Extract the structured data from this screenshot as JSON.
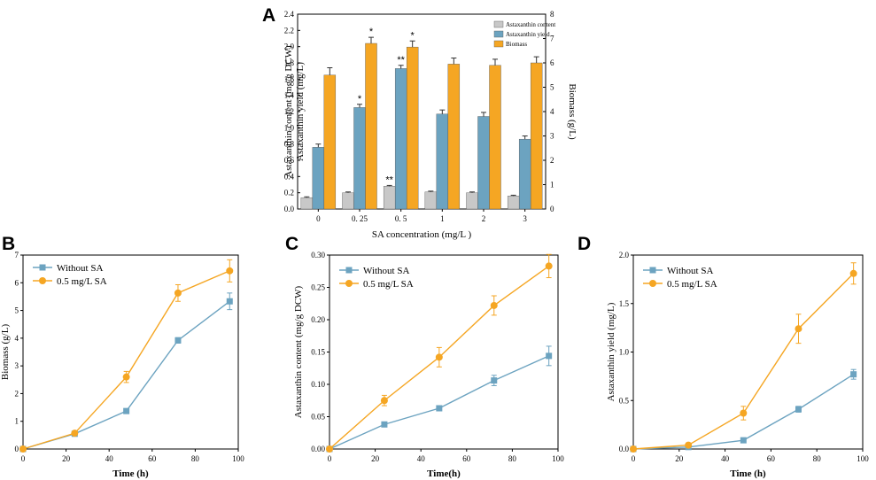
{
  "chart_data": [
    {
      "panel": "A",
      "type": "bar",
      "categories": [
        "0",
        "0. 25",
        "0. 5",
        "1",
        "2",
        "3"
      ],
      "xlabel": "SA concentration (mg/L )",
      "ylabel_lines": [
        "Astaxanthin content (mg/g DCW)",
        "Astaxanthin yield (mg/L)"
      ],
      "ylabel_right": "Biomass (g/L)",
      "ylim": [
        0,
        2.4
      ],
      "yticks": [
        "0.0",
        "0.2",
        "0.4",
        "0.6",
        "0.8",
        "1.0",
        "1.2",
        "1.4",
        "1.6",
        "1.8",
        "2.0",
        "2.2",
        "2.4"
      ],
      "ylim_right": [
        0,
        8
      ],
      "yticks_right": [
        "0",
        "1",
        "2",
        "3",
        "4",
        "5",
        "6",
        "7",
        "8"
      ],
      "series": [
        {
          "name": "Astaxanthin content",
          "color": "#c8c8c8",
          "axis": "left",
          "values": [
            0.14,
            0.2,
            0.28,
            0.21,
            0.2,
            0.16
          ],
          "errors": [
            0.01,
            0.01,
            0.01,
            0.01,
            0.01,
            0.01
          ],
          "marks": [
            "",
            "",
            "**",
            "",
            "",
            ""
          ]
        },
        {
          "name": "Astaxanthin yield",
          "color": "#6ca3c0",
          "axis": "left",
          "values": [
            0.76,
            1.25,
            1.73,
            1.17,
            1.14,
            0.86
          ],
          "errors": [
            0.04,
            0.04,
            0.04,
            0.05,
            0.05,
            0.04
          ],
          "marks": [
            "",
            "*",
            "**",
            "",
            "",
            ""
          ]
        },
        {
          "name": "Biomass",
          "color": "#f5a623",
          "axis": "right",
          "values": [
            5.5,
            6.8,
            6.65,
            5.95,
            5.9,
            6.0
          ],
          "errors": [
            0.3,
            0.25,
            0.25,
            0.25,
            0.25,
            0.25
          ],
          "marks": [
            "",
            "*",
            "*",
            "",
            "",
            ""
          ]
        }
      ]
    },
    {
      "panel": "B",
      "type": "line",
      "xlabel": "Time (h)",
      "ylabel": "Biomass (g/L)",
      "xlim": [
        0,
        100
      ],
      "ylim": [
        0,
        7
      ],
      "xticks": [
        "0",
        "20",
        "40",
        "60",
        "80",
        "100"
      ],
      "yticks": [
        "0",
        "1",
        "2",
        "3",
        "4",
        "5",
        "6",
        "7"
      ],
      "x": [
        0,
        24,
        48,
        72,
        96
      ],
      "series": [
        {
          "name": "Without SA",
          "color": "#6ca3c0",
          "marker": "square",
          "values": [
            0,
            0.55,
            1.37,
            3.92,
            5.33
          ],
          "errors": [
            0,
            0.05,
            0.05,
            0.1,
            0.3
          ]
        },
        {
          "name": "0.5 mg/L SA",
          "color": "#f5a623",
          "marker": "circle",
          "values": [
            0,
            0.57,
            2.6,
            5.63,
            6.43
          ],
          "errors": [
            0,
            0.05,
            0.2,
            0.3,
            0.4
          ]
        }
      ]
    },
    {
      "panel": "C",
      "type": "line",
      "xlabel": "Time(h)",
      "ylabel": "Astaxanthin content (mg/g DCW)",
      "xlim": [
        0,
        100
      ],
      "ylim": [
        0,
        0.3
      ],
      "xticks": [
        "0",
        "20",
        "40",
        "60",
        "80",
        "100"
      ],
      "yticks": [
        "0.00",
        "0.05",
        "0.10",
        "0.15",
        "0.20",
        "0.25",
        "0.30"
      ],
      "x": [
        0,
        24,
        48,
        72,
        96
      ],
      "series": [
        {
          "name": "Without SA",
          "color": "#6ca3c0",
          "marker": "square",
          "values": [
            0,
            0.038,
            0.063,
            0.106,
            0.144
          ],
          "errors": [
            0,
            0.003,
            0.004,
            0.008,
            0.015
          ]
        },
        {
          "name": "0.5 mg/L SA",
          "color": "#f5a623",
          "marker": "circle",
          "values": [
            0,
            0.075,
            0.142,
            0.222,
            0.283
          ],
          "errors": [
            0,
            0.008,
            0.015,
            0.015,
            0.018
          ]
        }
      ]
    },
    {
      "panel": "D",
      "type": "line",
      "xlabel": "Time (h)",
      "ylabel": "Astaxanthin yield (mg/L)",
      "xlim": [
        0,
        100
      ],
      "ylim": [
        0,
        2.0
      ],
      "xticks": [
        "0",
        "20",
        "40",
        "60",
        "80",
        "100"
      ],
      "yticks": [
        "0.0",
        "0.5",
        "1.0",
        "1.5",
        "2.0"
      ],
      "x": [
        0,
        24,
        48,
        72,
        96
      ],
      "series": [
        {
          "name": "Without SA",
          "color": "#6ca3c0",
          "marker": "square",
          "values": [
            0,
            0.02,
            0.09,
            0.41,
            0.77
          ],
          "errors": [
            0,
            0.01,
            0.01,
            0.03,
            0.05
          ]
        },
        {
          "name": "0.5 mg/L SA",
          "color": "#f5a623",
          "marker": "circle",
          "values": [
            0,
            0.04,
            0.37,
            1.24,
            1.81
          ],
          "errors": [
            0,
            0.01,
            0.07,
            0.15,
            0.11
          ]
        }
      ]
    }
  ]
}
